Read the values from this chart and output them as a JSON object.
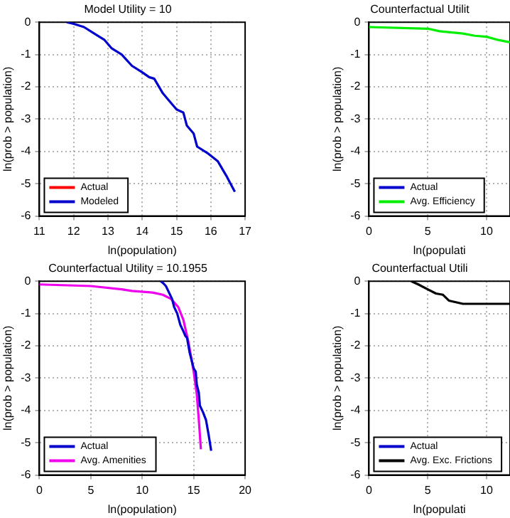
{
  "chart_data": [
    {
      "type": "line",
      "title": "Model Utility = 10",
      "xlabel": "ln(population)",
      "ylabel": "ln(prob > population)",
      "xlim": [
        11,
        17
      ],
      "xticks": [
        11,
        12,
        13,
        14,
        15,
        16,
        17
      ],
      "ylim": [
        -6,
        0
      ],
      "yticks": [
        -6,
        -5,
        -4,
        -3,
        -2,
        -1,
        0
      ],
      "grid": true,
      "legend": "bottom left",
      "marker": "none",
      "line_style": "solid",
      "series": [
        {
          "name": "Actual",
          "color": "#ff0000"
        },
        {
          "name": "Modeled",
          "color": "#0000cc",
          "x": [
            11.8,
            12,
            12.3,
            12.6,
            12.9,
            13.1,
            13.4,
            13.7,
            14,
            14.2,
            14.35,
            14.6,
            14.8,
            15,
            15.2,
            15.3,
            15.5,
            15.6,
            15.9,
            16.2,
            16.45,
            16.7
          ],
          "values": [
            0,
            -0.05,
            -0.15,
            -0.35,
            -0.55,
            -0.8,
            -1.0,
            -1.35,
            -1.55,
            -1.7,
            -1.75,
            -2.2,
            -2.45,
            -2.7,
            -2.8,
            -3.2,
            -3.45,
            -3.85,
            -4.05,
            -4.3,
            -4.75,
            -5.25
          ]
        }
      ]
    },
    {
      "type": "line",
      "title": "Counterfactual Utilit",
      "xlabel": "ln(populati",
      "ylabel": "ln(prob > population)",
      "xlim": [
        0,
        12
      ],
      "xticks": [
        0,
        5,
        10
      ],
      "ylim": [
        -6,
        0
      ],
      "yticks": [
        -6,
        -5,
        -4,
        -3,
        -2,
        -1,
        0
      ],
      "grid": true,
      "legend": "bottom left",
      "marker": "none",
      "line_style": "solid",
      "series": [
        {
          "name": "Actual",
          "color": "#0000cc"
        },
        {
          "name": "Avg. Efficiency",
          "color": "#00ee00",
          "x": [
            0,
            5,
            6,
            8,
            9,
            10,
            11,
            12
          ],
          "values": [
            -0.15,
            -0.2,
            -0.28,
            -0.35,
            -0.42,
            -0.45,
            -0.55,
            -0.62
          ]
        }
      ]
    },
    {
      "type": "line",
      "title": "Counterfactual Utility = 10.1955",
      "xlabel": "ln(population)",
      "ylabel": "ln(prob > population)",
      "xlim": [
        0,
        20
      ],
      "xticks": [
        0,
        5,
        10,
        15,
        20
      ],
      "ylim": [
        -6,
        0
      ],
      "yticks": [
        -6,
        -5,
        -4,
        -3,
        -2,
        -1,
        0
      ],
      "grid": true,
      "legend": "bottom left",
      "marker": "none",
      "line_style": "solid",
      "series": [
        {
          "name": "Actual",
          "color": "#0000cc",
          "x": [
            11.8,
            12,
            12.3,
            12.6,
            12.9,
            13.1,
            13.4,
            13.7,
            14,
            14.2,
            14.35,
            14.6,
            14.8,
            15,
            15.2,
            15.3,
            15.5,
            15.6,
            15.9,
            16.2,
            16.45,
            16.7
          ],
          "values": [
            0,
            -0.05,
            -0.15,
            -0.35,
            -0.55,
            -0.8,
            -1.0,
            -1.35,
            -1.55,
            -1.7,
            -1.75,
            -2.2,
            -2.45,
            -2.7,
            -2.8,
            -3.2,
            -3.45,
            -3.85,
            -4.05,
            -4.3,
            -4.75,
            -5.25
          ]
        },
        {
          "name": "Avg. Amenities",
          "color": "#ee00ee",
          "x": [
            0,
            5,
            8,
            9,
            11,
            12,
            12.8,
            13.5,
            14,
            14.5,
            15,
            15.3,
            15.5,
            15.7
          ],
          "values": [
            -0.1,
            -0.15,
            -0.25,
            -0.3,
            -0.35,
            -0.42,
            -0.55,
            -0.8,
            -1.2,
            -1.9,
            -2.8,
            -3.5,
            -4.3,
            -5.2
          ]
        }
      ]
    },
    {
      "type": "line",
      "title": "Counterfactual Utili",
      "xlabel": "ln(populati",
      "ylabel": "ln(prob > population)",
      "xlim": [
        0,
        12
      ],
      "xticks": [
        0,
        5,
        10
      ],
      "ylim": [
        -6,
        0
      ],
      "yticks": [
        -6,
        -5,
        -4,
        -3,
        -2,
        -1,
        0
      ],
      "grid": true,
      "legend": "bottom left",
      "marker": "none",
      "line_style": "solid",
      "series": [
        {
          "name": "Actual",
          "color": "#0000cc"
        },
        {
          "name": "Avg. Exc. Frictions",
          "color": "#000000",
          "x": [
            3.6,
            4.2,
            5,
            5.7,
            6.3,
            6.8,
            8,
            12
          ],
          "values": [
            0,
            -0.1,
            -0.25,
            -0.38,
            -0.42,
            -0.6,
            -0.7,
            -0.7
          ]
        }
      ]
    }
  ]
}
